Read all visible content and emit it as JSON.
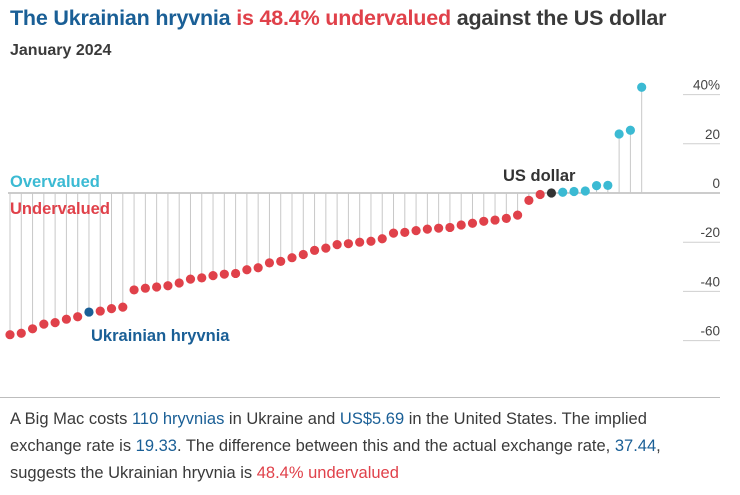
{
  "header": {
    "title_part1": "The Ukrainian hryvnia",
    "title_part2": "is 48.4% undervalued",
    "title_part3": "against the US dollar",
    "subtitle": "January 2024"
  },
  "colors": {
    "undervalued": "#e0414a",
    "overvalued": "#3bbad3",
    "highlight": "#1a5f96",
    "base_currency": "#333333",
    "stem": "#c8c8c8",
    "gridline": "#cfcfcf",
    "zero_line": "#9a9a9a"
  },
  "chart_data": {
    "type": "lollipop",
    "title": "The Ukrainian hryvnia is 48.4% undervalued against the US dollar",
    "subtitle": "January 2024",
    "ylim": [
      -62,
      42
    ],
    "yticks": [
      40,
      20,
      0,
      -20,
      -40,
      -60
    ],
    "ytick_labels": [
      "40%",
      "20",
      "0",
      "-20",
      "-40",
      "-60"
    ],
    "labels": {
      "overvalued": "Overvalued",
      "undervalued": "Undervalued",
      "base": "US dollar",
      "highlight": "Ukrainian hryvnia"
    },
    "values": [
      -57.6,
      -57.0,
      -55.2,
      -53.3,
      -52.7,
      -51.3,
      -50.3,
      -48.4,
      -48.0,
      -47.0,
      -46.4,
      -39.4,
      -38.7,
      -38.2,
      -37.7,
      -36.6,
      -35.0,
      -34.5,
      -33.6,
      -33.0,
      -32.7,
      -31.2,
      -30.4,
      -28.4,
      -27.8,
      -26.3,
      -25.0,
      -23.3,
      -22.4,
      -21.0,
      -20.6,
      -20.0,
      -19.6,
      -18.6,
      -16.3,
      -16.0,
      -15.3,
      -14.7,
      -14.3,
      -14.0,
      -13.0,
      -12.3,
      -11.5,
      -11.0,
      -10.3,
      -9.0,
      -3.0,
      -0.6,
      0.0,
      0.3,
      0.6,
      0.8,
      3.0,
      3.1,
      24.0,
      25.5,
      43.0
    ],
    "highlight_index": 7,
    "base_index": 48
  },
  "description": {
    "p1": "A Big Mac costs",
    "price_local": "110 hryvnias",
    "p2": "in Ukraine and",
    "price_usd": "US$5.69",
    "p3": "in the United States. The implied exchange rate is",
    "implied_rate": "19.33",
    "p4": ". The difference between this and the actual exchange rate,",
    "actual_rate": "37.44",
    "p5": ", suggests the Ukrainian hryvnia is",
    "result": "48.4% undervalued"
  }
}
